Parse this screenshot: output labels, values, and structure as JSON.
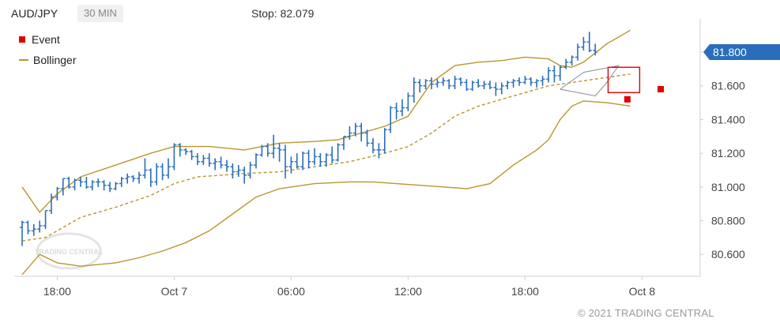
{
  "header": {
    "symbol": "AUD/JPY",
    "timeframe": "30 MIN",
    "stop": "Stop: 82.079"
  },
  "legend": {
    "event": "Event",
    "bollinger": "Bollinger"
  },
  "copyright": "© 2021 TRADING CENTRAL",
  "watermark": "TRADING CENTRAL",
  "colors": {
    "bar": "#2a6ebb",
    "bollinger": "#b8962e",
    "event": "#e00000",
    "price_tag": "#2a6ebb",
    "channel": "#8a8a9a"
  },
  "chart_data": {
    "type": "ohlc",
    "ylim": [
      80.47,
      81.95
    ],
    "yticks": [
      80.6,
      80.8,
      81.0,
      81.2,
      81.4,
      81.6,
      81.8
    ],
    "ytick_labels": [
      "80.600",
      "80.800",
      "81.000",
      "81.200",
      "81.400",
      "81.600",
      "81.800"
    ],
    "xticks": [
      {
        "label": "18:00",
        "idx": 6
      },
      {
        "label": "Oct 7",
        "idx": 26
      },
      {
        "label": "06:00",
        "idx": 46
      },
      {
        "label": "12:00",
        "idx": 66
      },
      {
        "label": "18:00",
        "idx": 86
      },
      {
        "label": "Oct 8",
        "idx": 106
      }
    ],
    "last_price": {
      "value": 81.8,
      "label": "81.800"
    },
    "ohlc": [
      [
        80.76,
        80.8,
        80.65,
        80.79
      ],
      [
        80.79,
        80.8,
        80.72,
        80.74
      ],
      [
        80.74,
        80.78,
        80.71,
        80.75
      ],
      [
        80.75,
        80.8,
        80.73,
        80.77
      ],
      [
        80.77,
        80.86,
        80.75,
        80.86
      ],
      [
        80.86,
        80.96,
        80.84,
        80.94
      ],
      [
        80.94,
        81.0,
        80.92,
        80.99
      ],
      [
        80.99,
        81.05,
        80.95,
        81.05
      ],
      [
        81.05,
        81.06,
        80.99,
        81.0
      ],
      [
        81.0,
        81.05,
        80.98,
        81.04
      ],
      [
        81.04,
        81.06,
        81.0,
        81.03
      ],
      [
        81.03,
        81.06,
        80.99,
        81.0
      ],
      [
        81.0,
        81.04,
        80.98,
        81.03
      ],
      [
        81.03,
        81.05,
        81.0,
        81.03
      ],
      [
        81.03,
        81.04,
        80.98,
        81.01
      ],
      [
        81.01,
        81.03,
        80.97,
        80.99
      ],
      [
        80.99,
        81.03,
        80.98,
        81.02
      ],
      [
        81.02,
        81.06,
        81.0,
        81.05
      ],
      [
        81.05,
        81.08,
        81.02,
        81.06
      ],
      [
        81.06,
        81.07,
        81.03,
        81.05
      ],
      [
        81.05,
        81.09,
        81.02,
        81.07
      ],
      [
        81.07,
        81.17,
        81.05,
        81.1
      ],
      [
        81.1,
        81.11,
        81.0,
        81.03
      ],
      [
        81.03,
        81.14,
        81.01,
        81.12
      ],
      [
        81.12,
        81.14,
        81.04,
        81.07
      ],
      [
        81.07,
        81.17,
        81.05,
        81.12
      ],
      [
        81.12,
        81.26,
        81.1,
        81.25
      ],
      [
        81.25,
        81.26,
        81.18,
        81.22
      ],
      [
        81.22,
        81.23,
        81.19,
        81.21
      ],
      [
        81.21,
        81.22,
        81.16,
        81.18
      ],
      [
        81.18,
        81.2,
        81.13,
        81.15
      ],
      [
        81.15,
        81.19,
        81.13,
        81.17
      ],
      [
        81.17,
        81.2,
        81.12,
        81.14
      ],
      [
        81.14,
        81.17,
        81.1,
        81.15
      ],
      [
        81.15,
        81.18,
        81.11,
        81.13
      ],
      [
        81.13,
        81.16,
        81.09,
        81.12
      ],
      [
        81.12,
        81.14,
        81.05,
        81.09
      ],
      [
        81.09,
        81.13,
        81.06,
        81.1
      ],
      [
        81.1,
        81.12,
        81.02,
        81.07
      ],
      [
        81.07,
        81.15,
        81.05,
        81.13
      ],
      [
        81.13,
        81.2,
        81.11,
        81.19
      ],
      [
        81.19,
        81.25,
        81.18,
        81.24
      ],
      [
        81.24,
        81.26,
        81.18,
        81.2
      ],
      [
        81.2,
        81.31,
        81.17,
        81.23
      ],
      [
        81.23,
        81.26,
        81.15,
        81.22
      ],
      [
        81.22,
        81.25,
        81.05,
        81.12
      ],
      [
        81.12,
        81.18,
        81.08,
        81.15
      ],
      [
        81.15,
        81.2,
        81.11,
        81.12
      ],
      [
        81.12,
        81.21,
        81.1,
        81.2
      ],
      [
        81.2,
        81.22,
        81.11,
        81.15
      ],
      [
        81.15,
        81.23,
        81.13,
        81.18
      ],
      [
        81.18,
        81.2,
        81.12,
        81.15
      ],
      [
        81.15,
        81.2,
        81.12,
        81.19
      ],
      [
        81.19,
        81.24,
        81.14,
        81.16
      ],
      [
        81.16,
        81.26,
        81.15,
        81.25
      ],
      [
        81.25,
        81.3,
        81.22,
        81.3
      ],
      [
        81.3,
        81.36,
        81.28,
        81.32
      ],
      [
        81.32,
        81.38,
        81.3,
        81.36
      ],
      [
        81.36,
        81.38,
        81.27,
        81.32
      ],
      [
        81.32,
        81.34,
        81.24,
        81.26
      ],
      [
        81.26,
        81.29,
        81.2,
        81.22
      ],
      [
        81.22,
        81.26,
        81.17,
        81.22
      ],
      [
        81.22,
        81.35,
        81.2,
        81.34
      ],
      [
        81.34,
        81.48,
        81.32,
        81.47
      ],
      [
        81.47,
        81.5,
        81.4,
        81.45
      ],
      [
        81.45,
        81.52,
        81.42,
        81.47
      ],
      [
        81.47,
        81.56,
        81.45,
        81.54
      ],
      [
        81.54,
        81.65,
        81.5,
        81.62
      ],
      [
        81.62,
        81.64,
        81.56,
        81.6
      ],
      [
        81.6,
        81.64,
        81.58,
        81.63
      ],
      [
        81.63,
        81.65,
        81.58,
        81.61
      ],
      [
        81.61,
        81.64,
        81.59,
        81.62
      ],
      [
        81.62,
        81.65,
        81.6,
        81.63
      ],
      [
        81.63,
        81.64,
        81.58,
        81.6
      ],
      [
        81.6,
        81.66,
        81.58,
        81.64
      ],
      [
        81.64,
        81.65,
        81.6,
        81.62
      ],
      [
        81.62,
        81.64,
        81.57,
        81.58
      ],
      [
        81.58,
        81.63,
        81.57,
        81.62
      ],
      [
        81.62,
        81.64,
        81.59,
        81.6
      ],
      [
        81.6,
        81.63,
        81.58,
        81.61
      ],
      [
        81.61,
        81.63,
        81.58,
        81.59
      ],
      [
        81.59,
        81.62,
        81.54,
        81.58
      ],
      [
        81.58,
        81.62,
        81.55,
        81.6
      ],
      [
        81.6,
        81.63,
        81.58,
        81.62
      ],
      [
        81.62,
        81.64,
        81.59,
        81.63
      ],
      [
        81.63,
        81.65,
        81.6,
        81.62
      ],
      [
        81.62,
        81.66,
        81.61,
        81.64
      ],
      [
        81.64,
        81.65,
        81.6,
        81.62
      ],
      [
        81.62,
        81.64,
        81.59,
        81.63
      ],
      [
        81.63,
        81.66,
        81.6,
        81.64
      ],
      [
        81.64,
        81.71,
        81.62,
        81.69
      ],
      [
        81.69,
        81.72,
        81.62,
        81.66
      ],
      [
        81.66,
        81.72,
        81.63,
        81.71
      ],
      [
        81.71,
        81.76,
        81.7,
        81.74
      ],
      [
        81.74,
        81.78,
        81.72,
        81.77
      ],
      [
        81.77,
        81.85,
        81.75,
        81.83
      ],
      [
        81.83,
        81.89,
        81.81,
        81.86
      ],
      [
        81.86,
        81.92,
        81.8,
        81.81
      ],
      [
        81.81,
        81.85,
        81.78,
        81.8
      ]
    ],
    "bollinger_upper": [
      [
        0,
        81.0
      ],
      [
        3,
        80.85
      ],
      [
        6,
        80.96
      ],
      [
        10,
        81.06
      ],
      [
        16,
        81.13
      ],
      [
        22,
        81.2
      ],
      [
        26,
        81.24
      ],
      [
        32,
        81.24
      ],
      [
        38,
        81.22
      ],
      [
        44,
        81.26
      ],
      [
        50,
        81.27
      ],
      [
        54,
        81.28
      ],
      [
        58,
        81.32
      ],
      [
        62,
        81.36
      ],
      [
        66,
        81.42
      ],
      [
        70,
        81.62
      ],
      [
        74,
        81.72
      ],
      [
        78,
        81.74
      ],
      [
        82,
        81.75
      ],
      [
        86,
        81.77
      ],
      [
        90,
        81.76
      ],
      [
        92,
        81.72
      ],
      [
        94,
        81.71
      ],
      [
        96,
        81.74
      ],
      [
        100,
        81.85
      ],
      [
        104,
        81.93
      ]
    ],
    "bollinger_middle": [
      [
        0,
        80.68
      ],
      [
        4,
        80.7
      ],
      [
        10,
        80.82
      ],
      [
        16,
        80.88
      ],
      [
        22,
        80.95
      ],
      [
        26,
        81.02
      ],
      [
        30,
        81.06
      ],
      [
        38,
        81.08
      ],
      [
        44,
        81.09
      ],
      [
        50,
        81.12
      ],
      [
        56,
        81.15
      ],
      [
        62,
        81.2
      ],
      [
        66,
        81.24
      ],
      [
        70,
        81.32
      ],
      [
        74,
        81.42
      ],
      [
        78,
        81.48
      ],
      [
        82,
        81.52
      ],
      [
        86,
        81.56
      ],
      [
        90,
        81.6
      ],
      [
        94,
        81.62
      ],
      [
        98,
        81.64
      ],
      [
        104,
        81.67
      ]
    ],
    "bollinger_lower": [
      [
        0,
        80.48
      ],
      [
        3,
        80.6
      ],
      [
        6,
        80.55
      ],
      [
        10,
        80.53
      ],
      [
        16,
        80.55
      ],
      [
        20,
        80.58
      ],
      [
        24,
        80.62
      ],
      [
        28,
        80.67
      ],
      [
        32,
        80.74
      ],
      [
        36,
        80.84
      ],
      [
        40,
        80.94
      ],
      [
        44,
        80.99
      ],
      [
        50,
        81.02
      ],
      [
        56,
        81.03
      ],
      [
        60,
        81.03
      ],
      [
        64,
        81.02
      ],
      [
        68,
        81.01
      ],
      [
        72,
        81.0
      ],
      [
        76,
        80.99
      ],
      [
        80,
        81.02
      ],
      [
        84,
        81.13
      ],
      [
        88,
        81.22
      ],
      [
        90,
        81.28
      ],
      [
        92,
        81.4
      ],
      [
        94,
        81.48
      ],
      [
        96,
        81.51
      ],
      [
        100,
        81.5
      ],
      [
        104,
        81.48
      ]
    ],
    "channel": [
      [
        92,
        81.58
      ],
      [
        98,
        81.54
      ],
      [
        100,
        81.62
      ],
      [
        102,
        81.72
      ],
      [
        96,
        81.68
      ],
      [
        92,
        81.58
      ]
    ],
    "event_box": {
      "i0": 100.2,
      "i1": 105.6,
      "y0": 81.56,
      "y1": 81.71
    },
    "events": [
      {
        "idx": 103.5,
        "value": 81.52
      },
      {
        "idx": 109.2,
        "value": 81.58
      }
    ]
  }
}
